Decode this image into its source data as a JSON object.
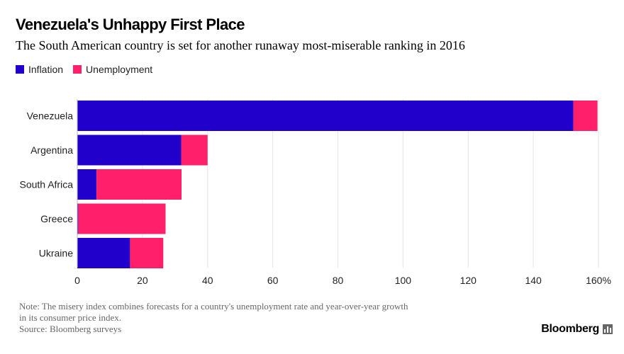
{
  "title": "Venezuela's Unhappy First Place",
  "subtitle": "The South American country is set for another runaway most-miserable ranking in 2016",
  "note_line1": "Note: The misery index combines forecasts for a country's unemployment rate and year-over-year growth",
  "note_line2": "in its consumer price index.",
  "source": "Source: Bloomberg surveys",
  "brand": "Bloomberg",
  "colors": {
    "inflation": "#2200CC",
    "unemployment": "#FF1F6B",
    "grid": "#e6e6e6"
  },
  "chart_data": {
    "type": "bar",
    "orientation": "horizontal",
    "stacked": true,
    "categories": [
      "Venezuela",
      "Argentina",
      "South Africa",
      "Greece",
      "Ukraine"
    ],
    "series": [
      {
        "name": "Inflation",
        "values": [
          152.3,
          31.9,
          5.9,
          0.3,
          16.2
        ]
      },
      {
        "name": "Unemployment",
        "values": [
          7.4,
          8.1,
          26.1,
          26.8,
          10.2
        ]
      }
    ],
    "xlim": [
      0,
      160
    ],
    "xticks": [
      "0",
      "20",
      "40",
      "60",
      "80",
      "100",
      "120",
      "140",
      "160%"
    ],
    "grid": true,
    "legend_position": "top-left"
  }
}
